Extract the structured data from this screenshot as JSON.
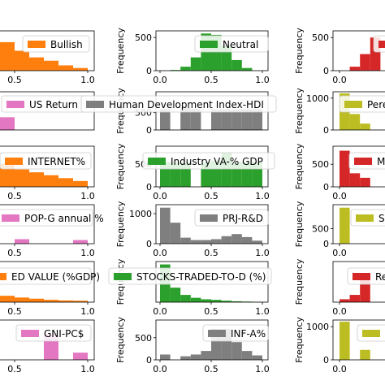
{
  "chart_data": {
    "type": "bar",
    "layout": "grid of histograms, 6 rows by 3 columns, image cropped at left and right",
    "colors": {
      "orange": "#ff7f0e",
      "green": "#2ca02c",
      "red": "#d62728",
      "pink": "#e377c2",
      "gray": "#7f7f7f",
      "olive": "#bcbd22"
    },
    "ylabel": "Frequency",
    "panels": [
      {
        "id": "bullish",
        "legend": "Bullish",
        "color": "#ff7f0e",
        "ylim": [
          0,
          600
        ],
        "yticks": [],
        "xticks": [
          "0.5",
          "1.0"
        ],
        "values": [
          180,
          420,
          560,
          500,
          430,
          300,
          200,
          150,
          80,
          40
        ]
      },
      {
        "id": "neutral",
        "legend": "Neutral",
        "color": "#2ca02c",
        "ylim": [
          0,
          600
        ],
        "yticks": [
          "0",
          "500"
        ],
        "xticks": [
          "0.0",
          "0.5",
          "1.0"
        ],
        "values": [
          0,
          10,
          60,
          200,
          560,
          540,
          380,
          160,
          40,
          0
        ]
      },
      {
        "id": "col3-r1",
        "legend": "",
        "color": "#d62728",
        "ylim": [
          0,
          600
        ],
        "yticks": [
          "0",
          "500"
        ],
        "xticks": [
          "0.0"
        ],
        "values": [
          0,
          60,
          250,
          500
        ]
      },
      {
        "id": "us-return",
        "legend": "US Return",
        "color": "#e377c2",
        "ylim": [
          0,
          900
        ],
        "yticks": [],
        "xticks": [],
        "values": [
          0,
          0,
          100,
          500,
          300,
          0,
          0,
          0,
          0,
          0
        ]
      },
      {
        "id": "hdi",
        "legend": "Human Development Index-HDI",
        "color": "#7f7f7f",
        "ylim": [
          0,
          1100
        ],
        "yticks": [
          "0",
          "500"
        ],
        "xticks": [],
        "values": [
          600,
          0,
          650,
          600,
          0,
          600,
          600,
          600,
          600,
          600
        ]
      },
      {
        "id": "col3-r2",
        "legend": "Pere",
        "color": "#bcbd22",
        "ylim": [
          0,
          1200
        ],
        "yticks": [
          "0",
          "1000"
        ],
        "xticks": [],
        "values": [
          1150,
          500,
          200
        ]
      },
      {
        "id": "internet",
        "legend": "INTERNET%",
        "color": "#ff7f0e",
        "ylim": [
          0,
          700
        ],
        "yticks": [],
        "xticks": [
          "0.5",
          "1.0"
        ],
        "values": [
          300,
          350,
          250,
          200,
          400,
          300,
          250,
          200,
          150,
          100
        ]
      },
      {
        "id": "industry",
        "legend": "Industry VA-% GDP",
        "color": "#2ca02c",
        "ylim": [
          0,
          900
        ],
        "yticks": [
          "0",
          "500"
        ],
        "xticks": [
          "0.0",
          "0.5",
          "1.0"
        ],
        "values": [
          550,
          550,
          550,
          0,
          550,
          580,
          750,
          550,
          550,
          550
        ]
      },
      {
        "id": "col3-r3",
        "legend": "M",
        "color": "#d62728",
        "ylim": [
          0,
          900
        ],
        "yticks": [
          "0",
          "500"
        ],
        "xticks": [
          "0.0"
        ],
        "values": [
          800,
          300,
          200
        ]
      },
      {
        "id": "pop-g",
        "legend": "POP-G annual %",
        "color": "#e377c2",
        "ylim": [
          0,
          1300
        ],
        "yticks": [],
        "xticks": [
          "0.5",
          "1.0"
        ],
        "values": [
          0,
          0,
          0,
          0,
          0,
          150,
          0,
          0,
          0,
          120
        ]
      },
      {
        "id": "prj-rd",
        "legend": "PRJ-R&D",
        "color": "#7f7f7f",
        "ylim": [
          0,
          1300
        ],
        "yticks": [
          "0",
          "1000"
        ],
        "xticks": [
          "0.0",
          "0.5",
          "1.0"
        ],
        "values": [
          1200,
          700,
          200,
          120,
          120,
          150,
          250,
          320,
          220,
          100
        ]
      },
      {
        "id": "col3-r4",
        "legend": "S",
        "color": "#bcbd22",
        "ylim": [
          0,
          1300
        ],
        "yticks": [
          "0",
          "500"
        ],
        "xticks": [
          "0.0"
        ],
        "values": [
          1200,
          0,
          0
        ]
      },
      {
        "id": "value-traded",
        "legend": "ED VALUE (%GDP)",
        "color": "#ff7f0e",
        "ylim": [
          0,
          1400
        ],
        "yticks": [],
        "xticks": [
          "0.5",
          "1.0"
        ],
        "values": [
          1000,
          700,
          450,
          300,
          220,
          160,
          120,
          80,
          60,
          50
        ]
      },
      {
        "id": "stocks-traded",
        "legend": "STOCKS-TRADED-TO-D (%)",
        "color": "#2ca02c",
        "ylim": [
          0,
          1400
        ],
        "yticks": [],
        "xticks": [
          "0.0",
          "0.5",
          "1.0"
        ],
        "values": [
          1300,
          500,
          250,
          150,
          100,
          80,
          50,
          30,
          20,
          10
        ]
      },
      {
        "id": "col3-r5",
        "legend": "Re",
        "color": "#d62728",
        "ylim": [
          0,
          1400
        ],
        "yticks": [],
        "xticks": [
          "0.0"
        ],
        "values": [
          100,
          250,
          800
        ]
      },
      {
        "id": "gni-pc",
        "legend": "GNI-PC$",
        "color": "#e377c2",
        "ylim": [
          0,
          1000
        ],
        "yticks": [],
        "xticks": [
          "0.5",
          "1.0"
        ],
        "values": [
          0,
          0,
          0,
          0,
          0,
          0,
          0,
          650,
          0,
          180
        ]
      },
      {
        "id": "inf-a",
        "legend": "INF-A%",
        "color": "#7f7f7f",
        "ylim": [
          0,
          900
        ],
        "yticks": [
          "0",
          "500"
        ],
        "xticks": [
          "0.0",
          "0.5",
          "1.0"
        ],
        "values": [
          120,
          0,
          80,
          120,
          200,
          700,
          700,
          400,
          200,
          100
        ]
      },
      {
        "id": "col3-r6",
        "legend": "",
        "color": "#bcbd22",
        "ylim": [
          0,
          1200
        ],
        "yticks": [
          "0",
          "1000"
        ],
        "xticks": [
          "0.0"
        ],
        "values": [
          1150,
          0,
          300
        ]
      }
    ]
  }
}
